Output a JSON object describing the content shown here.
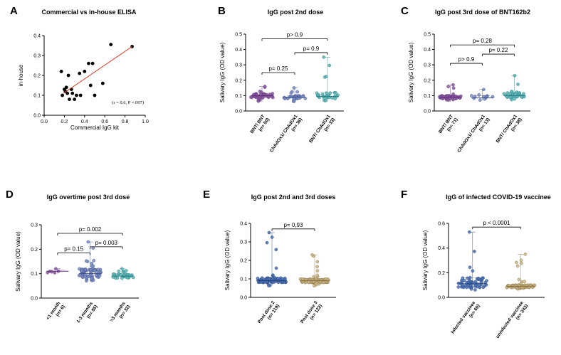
{
  "chart_data": [
    {
      "id": "A",
      "panel_label": "A",
      "type": "scatter",
      "title": "Commercial vs in-house ELISA",
      "xlabel": "Commercial IgG kit",
      "ylabel": "in-house",
      "xlim": [
        0.0,
        1.0
      ],
      "ylim": [
        0.0,
        0.4
      ],
      "xticks": [
        "0.0",
        "0.2",
        "0.4",
        "0.6",
        "0.8",
        "1.0"
      ],
      "yticks": [
        "0.0",
        "0.1",
        "0.2",
        "0.3",
        "0.4"
      ],
      "annotation": "(r = 0.6, P =.007)",
      "regression": {
        "x": [
          0.19,
          0.87
        ],
        "y": [
          0.11,
          0.345
        ],
        "color": "#e0402a"
      },
      "points": [
        {
          "x": 0.17,
          "y": 0.22
        },
        {
          "x": 0.18,
          "y": 0.1
        },
        {
          "x": 0.2,
          "y": 0.13
        },
        {
          "x": 0.21,
          "y": 0.12
        },
        {
          "x": 0.22,
          "y": 0.14
        },
        {
          "x": 0.23,
          "y": 0.11
        },
        {
          "x": 0.25,
          "y": 0.08
        },
        {
          "x": 0.24,
          "y": 0.2
        },
        {
          "x": 0.27,
          "y": 0.13
        },
        {
          "x": 0.28,
          "y": 0.11
        },
        {
          "x": 0.3,
          "y": 0.08
        },
        {
          "x": 0.32,
          "y": 0.1
        },
        {
          "x": 0.35,
          "y": 0.21
        },
        {
          "x": 0.36,
          "y": 0.1
        },
        {
          "x": 0.4,
          "y": 0.22
        },
        {
          "x": 0.44,
          "y": 0.26
        },
        {
          "x": 0.46,
          "y": 0.15
        },
        {
          "x": 0.48,
          "y": 0.26
        },
        {
          "x": 0.5,
          "y": 0.1
        },
        {
          "x": 0.58,
          "y": 0.16
        },
        {
          "x": 0.66,
          "y": 0.355
        },
        {
          "x": 0.87,
          "y": 0.345
        }
      ]
    },
    {
      "id": "B",
      "panel_label": "B",
      "type": "scatter",
      "title": "IgG post 2nd dose",
      "ylabel": "Salivary IgG (OD value)",
      "ylim": [
        0.0,
        0.5
      ],
      "yticks": [
        "0.0",
        "0.1",
        "0.2",
        "0.3",
        "0.4",
        "0.5"
      ],
      "categories": [
        "BNT/ BNT\n(n= 50)",
        "ChAdOx1/ ChAdOx1\n(n= 36)",
        "BNT/ ChAdOx1\n(n= 33)"
      ],
      "groups": [
        {
          "color": "#8a5aa0",
          "edge": "#5e2e78",
          "min": 0.06,
          "q1": 0.085,
          "median": 0.1,
          "q3": 0.115,
          "max": 0.16,
          "n": 50
        },
        {
          "color": "#7a8cc0",
          "edge": "#3b4d8c",
          "min": 0.06,
          "q1": 0.08,
          "median": 0.09,
          "q3": 0.1,
          "max": 0.15,
          "n": 36
        },
        {
          "color": "#5bb4b4",
          "edge": "#2b7f86",
          "min": 0.06,
          "q1": 0.08,
          "median": 0.095,
          "q3": 0.12,
          "max": 0.35,
          "n": 33
        }
      ],
      "comparisons": [
        {
          "from": 0,
          "to": 1,
          "label": "p= 0.25",
          "y": 0.25
        },
        {
          "from": 1,
          "to": 2,
          "label": "p= 0.9",
          "y": 0.38
        },
        {
          "from": 0,
          "to": 2,
          "label": "p> 0.9",
          "y": 0.47
        }
      ]
    },
    {
      "id": "C",
      "panel_label": "C",
      "type": "scatter",
      "title": "IgG post 3rd dose of BNT162b2",
      "ylabel": "Salivary IgG (OD value)",
      "ylim": [
        0.0,
        0.5
      ],
      "yticks": [
        "0.0",
        "0.1",
        "0.2",
        "0.3",
        "0.4",
        "0.5"
      ],
      "categories": [
        "BNT/ BNT\n(n= 71)",
        "ChAdOx1/ ChAdOx1\n(n= 13)",
        "BNT/ ChAdOx1\n(n= 38)"
      ],
      "groups": [
        {
          "color": "#8a5aa0",
          "edge": "#5e2e78",
          "min": 0.06,
          "q1": 0.08,
          "median": 0.09,
          "q3": 0.1,
          "max": 0.17,
          "n": 71
        },
        {
          "color": "#7a8cc0",
          "edge": "#3b4d8c",
          "min": 0.07,
          "q1": 0.08,
          "median": 0.085,
          "q3": 0.1,
          "max": 0.14,
          "n": 13
        },
        {
          "color": "#5bb4b4",
          "edge": "#2b7f86",
          "min": 0.07,
          "q1": 0.085,
          "median": 0.1,
          "q3": 0.12,
          "max": 0.23,
          "n": 38
        }
      ],
      "comparisons": [
        {
          "from": 0,
          "to": 1,
          "label": "p> 0.9",
          "y": 0.31
        },
        {
          "from": 1,
          "to": 2,
          "label": "p= 0.22",
          "y": 0.37
        },
        {
          "from": 0,
          "to": 2,
          "label": "p= 0.28",
          "y": 0.43
        }
      ]
    },
    {
      "id": "D",
      "panel_label": "D",
      "type": "scatter",
      "title": "IgG overtime post 3rd dose",
      "ylabel": "Salivary IgG (OD value)",
      "ylim": [
        0.0,
        0.3
      ],
      "yticks": [
        "0.0",
        "0.1",
        "0.2",
        "0.3"
      ],
      "categories": [
        "<1 month\n(n= 6)",
        "1-3 months\n(n= 85)",
        ">3 months\n(n= 32)"
      ],
      "groups": [
        {
          "color": "#8a5aa0",
          "edge": "#5e2e78",
          "min": 0.1,
          "q1": 0.1,
          "median": 0.11,
          "q3": 0.115,
          "max": 0.12,
          "n": 6
        },
        {
          "color": "#7a8cc0",
          "edge": "#3b4d8c",
          "min": 0.07,
          "q1": 0.085,
          "median": 0.1,
          "q3": 0.12,
          "max": 0.23,
          "n": 85
        },
        {
          "color": "#5bb4b4",
          "edge": "#2b7f86",
          "min": 0.07,
          "q1": 0.08,
          "median": 0.09,
          "q3": 0.1,
          "max": 0.12,
          "n": 32
        }
      ],
      "comparisons": [
        {
          "from": 0,
          "to": 1,
          "label": "p= 0.15",
          "y": 0.185
        },
        {
          "from": 1,
          "to": 2,
          "label": "p= 0.003",
          "y": 0.21
        },
        {
          "from": 0,
          "to": 2,
          "label": "p= 0.002",
          "y": 0.265
        }
      ]
    },
    {
      "id": "E",
      "panel_label": "E",
      "type": "scatter",
      "title": "IgG post 2nd and 3rd doses",
      "ylabel": "Salivary IgG (OD value)",
      "ylim": [
        0.0,
        0.4
      ],
      "yticks": [
        "0.0",
        "0.1",
        "0.2",
        "0.3",
        "0.4"
      ],
      "categories": [
        "Post dose 2\n(n= 119)",
        "Post dose 3\n(n= 122)"
      ],
      "groups": [
        {
          "color": "#4a70b0",
          "edge": "#1f3f80",
          "min": 0.06,
          "q1": 0.08,
          "median": 0.09,
          "q3": 0.105,
          "max": 0.35,
          "n": 119
        },
        {
          "color": "#c8b484",
          "edge": "#8a7040",
          "min": 0.06,
          "q1": 0.08,
          "median": 0.09,
          "q3": 0.1,
          "max": 0.23,
          "n": 122
        }
      ],
      "comparisons": [
        {
          "from": 0,
          "to": 1,
          "label": "p= 0,93",
          "y": 0.37
        }
      ]
    },
    {
      "id": "F",
      "panel_label": "F",
      "type": "scatter",
      "title": "IgG of infected COVID-19 vaccinee",
      "ylabel": "Salivary IgG (OD value)",
      "ylim": [
        0.0,
        0.6
      ],
      "yticks": [
        "0.0",
        "0.2",
        "0.4",
        "0.6"
      ],
      "categories": [
        "Infected vaccinee\n(n= 60)",
        "uninfected vaccinee\n(n= 243)"
      ],
      "groups": [
        {
          "color": "#4a70b0",
          "edge": "#1f3f80",
          "min": 0.06,
          "q1": 0.08,
          "median": 0.11,
          "q3": 0.16,
          "max": 0.53,
          "n": 60
        },
        {
          "color": "#c8b484",
          "edge": "#8a7040",
          "min": 0.06,
          "q1": 0.08,
          "median": 0.09,
          "q3": 0.1,
          "max": 0.35,
          "n": 243
        }
      ],
      "comparisons": [
        {
          "from": 0,
          "to": 1,
          "label": "p < 0.0001",
          "y": 0.57
        }
      ]
    }
  ]
}
